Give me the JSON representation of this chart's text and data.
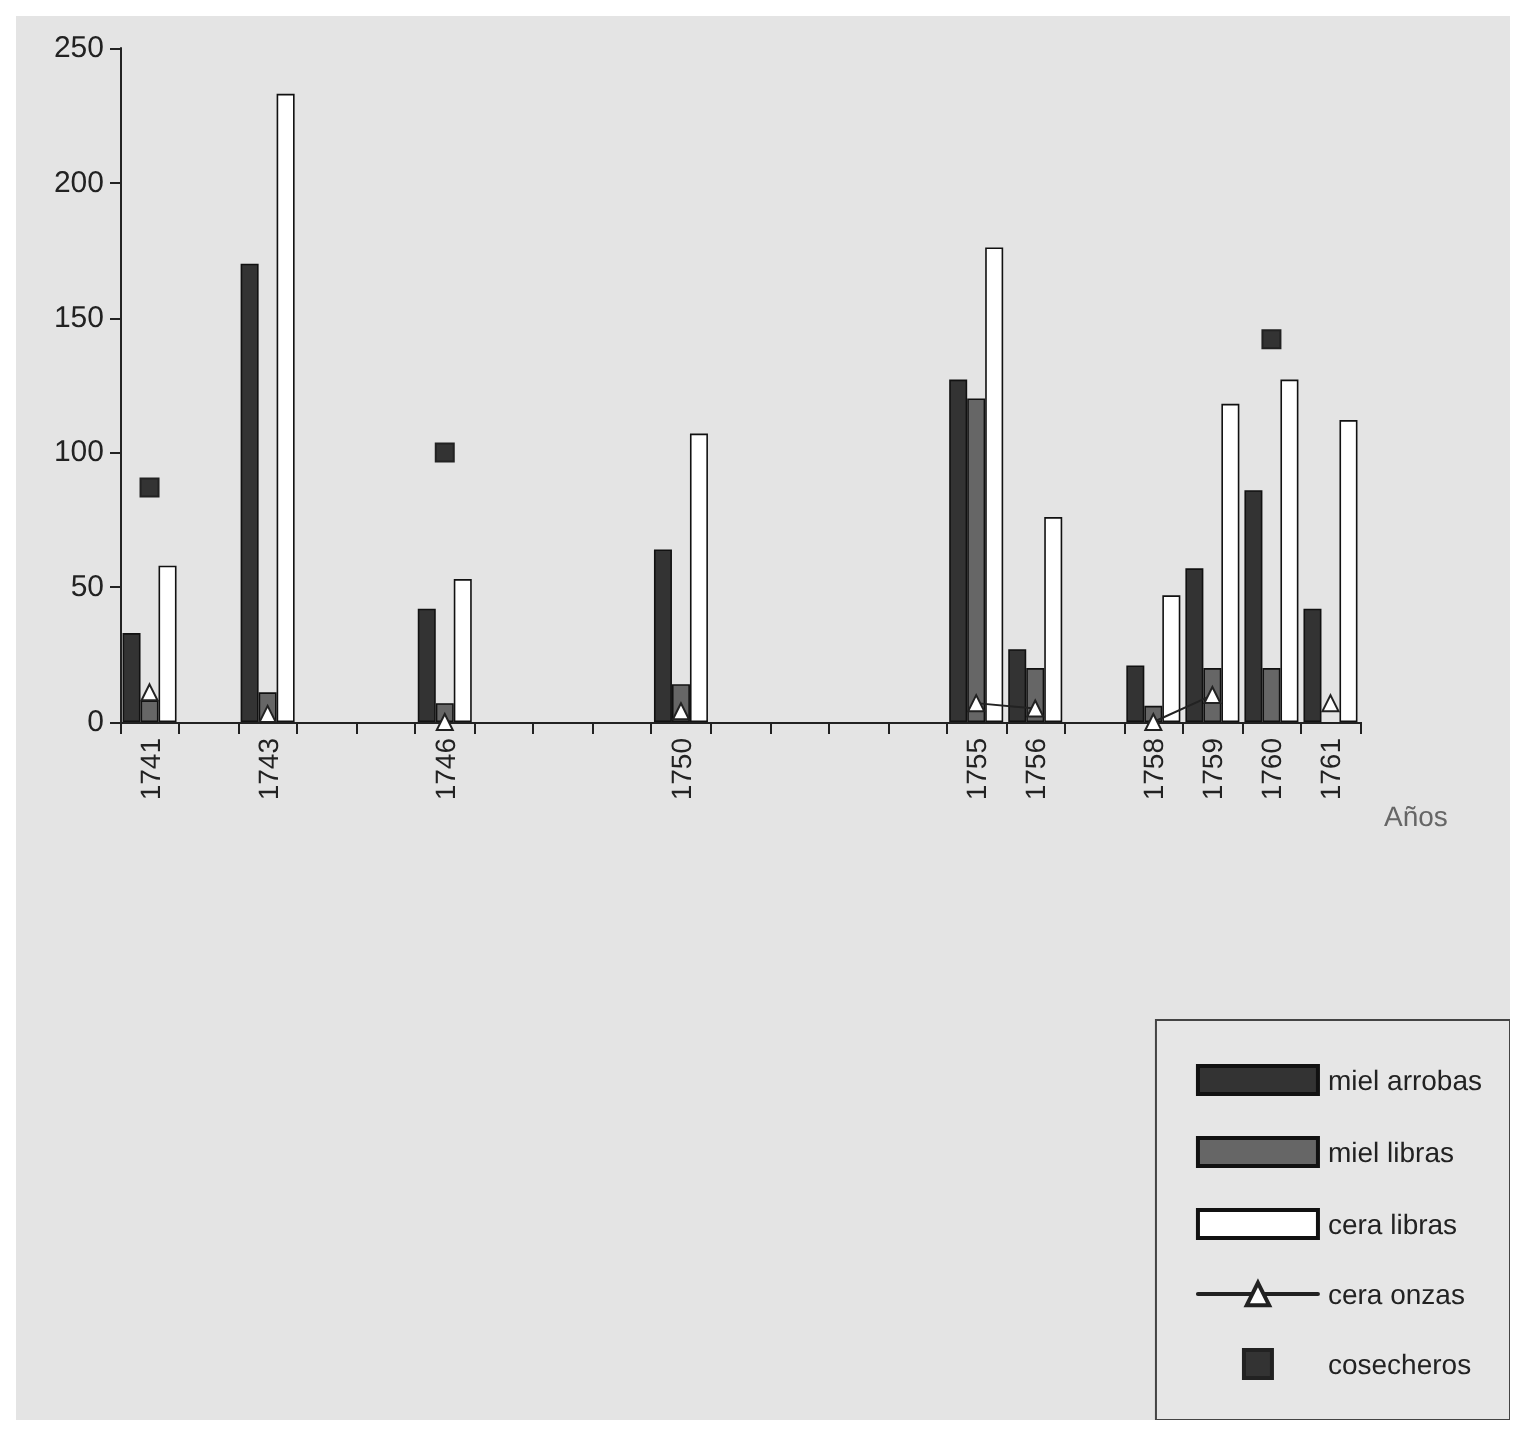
{
  "chart_data": {
    "type": "bar",
    "xlabel": "Años",
    "categories": [
      "1741",
      null,
      "1743",
      null,
      null,
      "1746",
      null,
      null,
      null,
      "1750",
      null,
      null,
      null,
      null,
      "1755",
      "1756",
      null,
      "1758",
      "1759",
      "1760",
      "1761"
    ],
    "series": [
      {
        "name": "miel arrobas",
        "color": "#333333",
        "values": [
          33,
          null,
          170,
          null,
          null,
          42,
          null,
          null,
          null,
          64,
          null,
          null,
          null,
          null,
          127,
          27,
          null,
          21,
          57,
          86,
          42
        ]
      },
      {
        "name": "miel libras",
        "color": "#666666",
        "values": [
          8,
          null,
          11,
          null,
          null,
          7,
          null,
          null,
          null,
          14,
          null,
          null,
          null,
          null,
          120,
          20,
          null,
          6,
          20,
          20,
          null
        ]
      },
      {
        "name": "cera libras",
        "color": "#ffffff",
        "values": [
          58,
          null,
          233,
          null,
          null,
          53,
          null,
          null,
          null,
          107,
          null,
          null,
          null,
          null,
          176,
          76,
          null,
          47,
          118,
          127,
          112
        ]
      },
      {
        "name": "cera onzas",
        "type": "line",
        "color": "#ffffff",
        "marker": "triangle",
        "values": [
          11,
          null,
          3,
          null,
          null,
          0,
          null,
          null,
          null,
          4,
          null,
          null,
          null,
          null,
          7,
          5,
          null,
          0,
          10,
          null,
          7
        ]
      },
      {
        "name": "cosecheros",
        "type": "scatter",
        "color": "#333333",
        "marker": "square",
        "values": [
          87,
          null,
          null,
          null,
          null,
          100,
          null,
          null,
          null,
          null,
          null,
          null,
          null,
          null,
          null,
          null,
          null,
          null,
          null,
          142,
          null
        ]
      }
    ],
    "ylim": [
      0,
      250
    ],
    "yticks": [
      0,
      50,
      100,
      150,
      200,
      250
    ],
    "grid": false,
    "legend": "bottom right"
  }
}
